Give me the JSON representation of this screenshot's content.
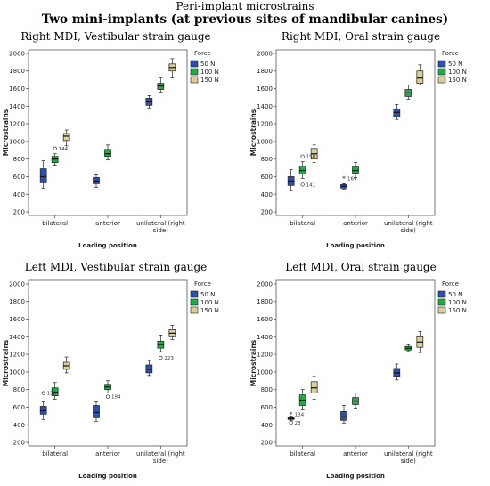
{
  "header": {
    "title": "Peri-implant microstrains",
    "subtitle": "Two mini-implants (at previous sites of mandibular canines)"
  },
  "colors": {
    "50 N": "#2f4fa8",
    "100 N": "#24a84a",
    "150 N": "#d9cf9a"
  },
  "chart_data": [
    {
      "type": "box",
      "title": "Right MDI, Vestibular strain gauge",
      "xlabel": "Loading position",
      "ylabel": "Microstrains",
      "categories": [
        "bilateral",
        "anterior",
        "unilateral (right side)"
      ],
      "category_lines": [
        [
          "bilateral"
        ],
        [
          "anterior"
        ],
        [
          "unilateral (right",
          "side)"
        ]
      ],
      "y_ticks": [
        200,
        400,
        600,
        800,
        1000,
        1200,
        1400,
        1600,
        1800,
        2000
      ],
      "ylim": [
        160,
        2040
      ],
      "legend": {
        "title": "Force",
        "entries": [
          "50 N",
          "100 N",
          "150 N"
        ],
        "position": "right"
      },
      "series": [
        {
          "name": "50 N",
          "boxes": [
            {
              "min": 470,
              "q1": 530,
              "median": 600,
              "q3": 690,
              "max": 780
            },
            {
              "min": 480,
              "q1": 520,
              "median": 550,
              "q3": 590,
              "max": 620
            },
            {
              "min": 1380,
              "q1": 1410,
              "median": 1450,
              "q3": 1490,
              "max": 1520
            }
          ]
        },
        {
          "name": "100 N",
          "boxes": [
            {
              "min": 730,
              "q1": 760,
              "median": 800,
              "q3": 830,
              "max": 860
            },
            {
              "min": 790,
              "q1": 830,
              "median": 860,
              "q3": 910,
              "max": 960
            },
            {
              "min": 1560,
              "q1": 1590,
              "median": 1630,
              "q3": 1660,
              "max": 1720
            }
          ]
        },
        {
          "name": "150 N",
          "boxes": [
            {
              "min": 950,
              "q1": 1010,
              "median": 1060,
              "q3": 1090,
              "max": 1130
            },
            null,
            {
              "min": 1720,
              "q1": 1800,
              "median": 1840,
              "q3": 1880,
              "max": 1940
            }
          ]
        }
      ],
      "outliers": [
        {
          "category": 0,
          "series": "100 N",
          "value": 920,
          "label": "144",
          "marker": "circle"
        }
      ]
    },
    {
      "type": "box",
      "title": "Right MDI, Oral strain gauge",
      "xlabel": "Loading position",
      "ylabel": "Microstrains",
      "categories": [
        "bilateral",
        "anterior",
        "unilateral (right side)"
      ],
      "category_lines": [
        [
          "bilateral"
        ],
        [
          "anterior"
        ],
        [
          "unilateral (right",
          "side)"
        ]
      ],
      "y_ticks": [
        200,
        400,
        600,
        800,
        1000,
        1200,
        1400,
        1600,
        1800,
        2000
      ],
      "ylim": [
        160,
        2040
      ],
      "legend": {
        "title": "Force",
        "entries": [
          "50 N",
          "100 N",
          "150 N"
        ],
        "position": "right"
      },
      "series": [
        {
          "name": "50 N",
          "boxes": [
            {
              "min": 440,
              "q1": 500,
              "median": 550,
              "q3": 600,
              "max": 680
            },
            {
              "min": 460,
              "q1": 470,
              "median": 490,
              "q3": 510,
              "max": 520
            },
            {
              "min": 1250,
              "q1": 1280,
              "median": 1330,
              "q3": 1370,
              "max": 1420
            }
          ]
        },
        {
          "name": "100 N",
          "boxes": [
            {
              "min": 580,
              "q1": 630,
              "median": 670,
              "q3": 720,
              "max": 770
            },
            {
              "min": 590,
              "q1": 640,
              "median": 670,
              "q3": 710,
              "max": 760
            },
            {
              "min": 1480,
              "q1": 1510,
              "median": 1550,
              "q3": 1590,
              "max": 1640
            }
          ]
        },
        {
          "name": "150 N",
          "boxes": [
            {
              "min": 760,
              "q1": 800,
              "median": 860,
              "q3": 920,
              "max": 960
            },
            null,
            {
              "min": 1640,
              "q1": 1660,
              "median": 1720,
              "q3": 1800,
              "max": 1870
            }
          ]
        }
      ],
      "outliers": [
        {
          "category": 0,
          "series": "100 N",
          "value": 830,
          "label": "150",
          "marker": "circle"
        },
        {
          "category": 0,
          "series": "100 N",
          "value": 510,
          "label": "141",
          "marker": "circle"
        },
        {
          "category": 1,
          "series": "50 N",
          "value": 580,
          "label": "169",
          "marker": "star"
        }
      ]
    },
    {
      "type": "box",
      "title": "Left MDI, Vestibular strain gauge",
      "xlabel": "Loading position",
      "ylabel": "Microstrains",
      "categories": [
        "bilateral",
        "anterior",
        "unilateral (right side)"
      ],
      "category_lines": [
        [
          "bilateral"
        ],
        [
          "anterior"
        ],
        [
          "unilateral (right",
          "side)"
        ]
      ],
      "y_ticks": [
        200,
        400,
        600,
        800,
        1000,
        1200,
        1400,
        1600,
        1800,
        2000
      ],
      "ylim": [
        160,
        2040
      ],
      "legend": {
        "title": "Force",
        "entries": [
          "50 N",
          "100 N",
          "150 N"
        ],
        "position": "right"
      },
      "series": [
        {
          "name": "50 N",
          "boxes": [
            {
              "min": 460,
              "q1": 520,
              "median": 560,
              "q3": 610,
              "max": 660
            },
            {
              "min": 440,
              "q1": 480,
              "median": 540,
              "q3": 620,
              "max": 660
            },
            {
              "min": 960,
              "q1": 990,
              "median": 1030,
              "q3": 1080,
              "max": 1130
            }
          ]
        },
        {
          "name": "100 N",
          "boxes": [
            {
              "min": 690,
              "q1": 730,
              "median": 770,
              "q3": 820,
              "max": 880
            },
            {
              "min": 760,
              "q1": 800,
              "median": 830,
              "q3": 860,
              "max": 900
            },
            {
              "min": 1230,
              "q1": 1270,
              "median": 1310,
              "q3": 1350,
              "max": 1420
            }
          ]
        },
        {
          "name": "150 N",
          "boxes": [
            {
              "min": 990,
              "q1": 1030,
              "median": 1070,
              "q3": 1110,
              "max": 1170
            },
            null,
            {
              "min": 1370,
              "q1": 1400,
              "median": 1440,
              "q3": 1480,
              "max": 1530
            }
          ]
        }
      ],
      "outliers": [
        {
          "category": 0,
          "series": "50 N",
          "value": 760,
          "label": "130",
          "marker": "circle"
        },
        {
          "category": 1,
          "series": "100 N",
          "value": 720,
          "label": "194",
          "marker": "circle"
        },
        {
          "category": 2,
          "series": "100 N",
          "value": 1160,
          "label": "223",
          "marker": "circle"
        }
      ]
    },
    {
      "type": "box",
      "title": "Left MDI, Oral strain gauge",
      "xlabel": "Loading position",
      "ylabel": "Microstrains",
      "categories": [
        "bilateral",
        "anterior",
        "unilateral (right side)"
      ],
      "category_lines": [
        [
          "bilateral"
        ],
        [
          "anterior"
        ],
        [
          "unilateral (right",
          "side)"
        ]
      ],
      "y_ticks": [
        200,
        400,
        600,
        800,
        1000,
        1200,
        1400,
        1600,
        1800,
        2000
      ],
      "ylim": [
        160,
        2040
      ],
      "legend": {
        "title": "Force",
        "entries": [
          "50 N",
          "100 N",
          "150 N"
        ],
        "position": "right"
      },
      "series": [
        {
          "name": "50 N",
          "boxes": [
            {
              "min": 450,
              "q1": 460,
              "median": 470,
              "q3": 480,
              "max": 500
            },
            {
              "min": 420,
              "q1": 450,
              "median": 490,
              "q3": 550,
              "max": 620
            },
            {
              "min": 910,
              "q1": 950,
              "median": 990,
              "q3": 1040,
              "max": 1090
            }
          ]
        },
        {
          "name": "100 N",
          "boxes": [
            {
              "min": 570,
              "q1": 620,
              "median": 680,
              "q3": 740,
              "max": 800
            },
            {
              "min": 590,
              "q1": 630,
              "median": 670,
              "q3": 710,
              "max": 760
            },
            {
              "min": 1240,
              "q1": 1250,
              "median": 1270,
              "q3": 1290,
              "max": 1310
            }
          ]
        },
        {
          "name": "150 N",
          "boxes": [
            {
              "min": 690,
              "q1": 760,
              "median": 820,
              "q3": 890,
              "max": 950
            },
            null,
            {
              "min": 1220,
              "q1": 1280,
              "median": 1340,
              "q3": 1400,
              "max": 1460
            }
          ]
        }
      ],
      "outliers": [
        {
          "category": 0,
          "series": "50 N",
          "value": 520,
          "label": "134",
          "marker": "star"
        },
        {
          "category": 0,
          "series": "50 N",
          "value": 425,
          "label": "23",
          "marker": "circle"
        }
      ]
    }
  ]
}
